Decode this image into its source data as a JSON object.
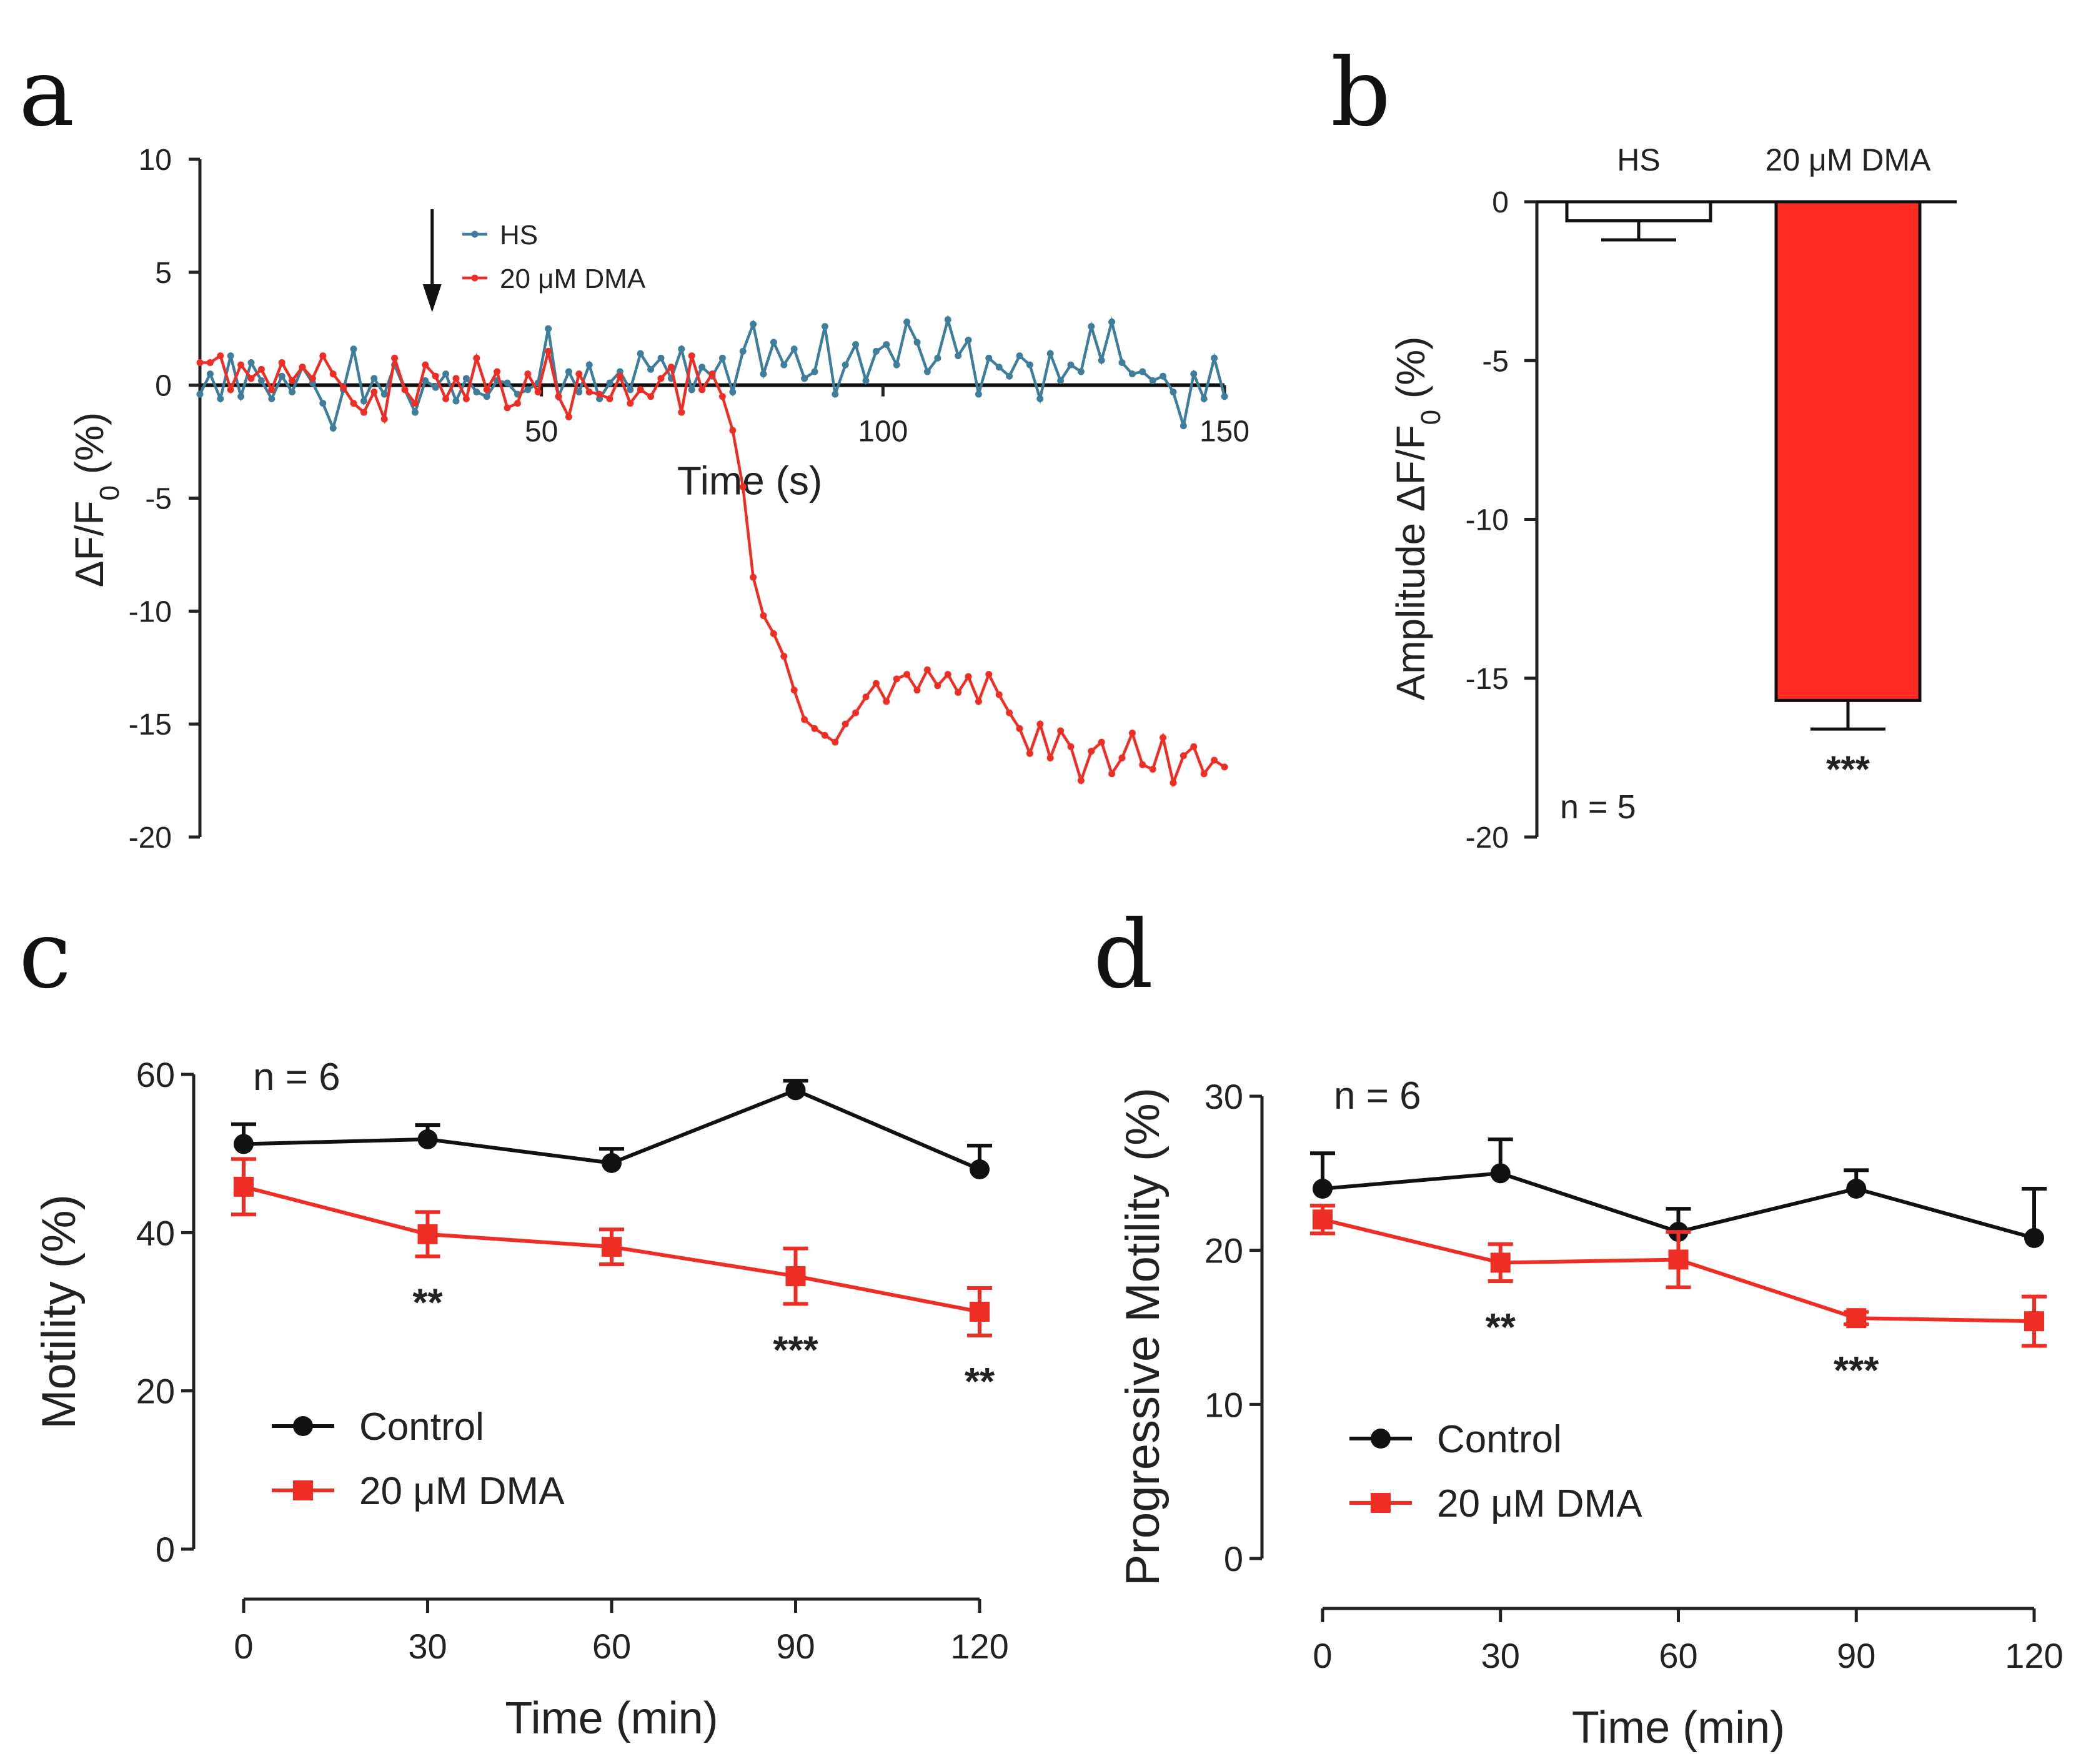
{
  "figure": {
    "panel_letters": [
      "a",
      "b",
      "c",
      "d"
    ]
  },
  "chart_data": [
    {
      "panel": "a",
      "type": "line",
      "xlabel": "Time (s)",
      "ylabel": "ΔF/F0 (%)",
      "ylabel_main": "ΔF/F",
      "ylabel_sub": "0",
      "ylabel_tail": " (%)",
      "xlim": [
        0,
        150
      ],
      "ylim": [
        -20,
        10
      ],
      "xticks": [
        50,
        100,
        150
      ],
      "yticks": [
        10,
        5,
        0,
        -5,
        -10,
        -15,
        -20
      ],
      "legend": [
        "HS",
        "20 μM DMA"
      ],
      "arrow_at_x": 34,
      "series": [
        {
          "name": "HS",
          "color": "#3e7d9b",
          "x": [
            0,
            1.5,
            3,
            4.5,
            6,
            7.5,
            9,
            10.5,
            12,
            13.5,
            15,
            16.5,
            18,
            19.5,
            21,
            22.5,
            24,
            25.5,
            27,
            28.5,
            30,
            31.5,
            33,
            34.5,
            36,
            37.5,
            39,
            40.5,
            42,
            43.5,
            45,
            46.5,
            48,
            49.5,
            51,
            52.5,
            54,
            55.5,
            57,
            58.5,
            60,
            61.5,
            63,
            64.5,
            66,
            67.5,
            69,
            70.5,
            72,
            73.5,
            75,
            76.5,
            78,
            79.5,
            81,
            82.5,
            84,
            85.5,
            87,
            88.5,
            90,
            91.5,
            93,
            94.5,
            96,
            97.5,
            99,
            100.5,
            102,
            103.5,
            105,
            106.5,
            108,
            109.5,
            111,
            112.5,
            114,
            115.5,
            117,
            118.5,
            120,
            121.5,
            123,
            124.5,
            126,
            127.5,
            129,
            130.5,
            132,
            133.5,
            135,
            136.5,
            138,
            139.5,
            141,
            142.5,
            144,
            145.5,
            147,
            148.5,
            150
          ],
          "y": [
            -0.4,
            0.5,
            -0.6,
            1.3,
            -0.5,
            1.0,
            0.2,
            -0.6,
            0.4,
            -0.3,
            0.8,
            0.1,
            -0.8,
            -1.9,
            -0.2,
            1.6,
            -0.7,
            0.3,
            -0.4,
            0.9,
            -0.2,
            -1.2,
            0.2,
            -0.1,
            0.5,
            -0.7,
            0.3,
            -0.3,
            -0.5,
            0.2,
            0.1,
            -0.4,
            -0.2,
            0.1,
            2.5,
            -0.5,
            0.6,
            -0.3,
            0.9,
            -0.6,
            0.1,
            0.6,
            -0.2,
            1.4,
            0.7,
            1.2,
            0.3,
            1.6,
            -0.2,
            0.8,
            0.4,
            1.2,
            -0.3,
            1.5,
            2.7,
            0.5,
            1.9,
            0.9,
            1.6,
            0.3,
            0.6,
            2.6,
            -0.4,
            0.9,
            1.8,
            0.2,
            1.5,
            1.8,
            0.9,
            2.8,
            1.9,
            0.6,
            1.2,
            2.9,
            1.3,
            2.0,
            -0.4,
            1.2,
            0.8,
            0.4,
            1.3,
            0.9,
            -0.6,
            1.4,
            0.2,
            0.9,
            0.6,
            2.6,
            1.1,
            2.8,
            1.0,
            0.5,
            0.6,
            0.2,
            0.4,
            -0.3,
            -1.8,
            0.5,
            -0.6,
            1.2,
            -0.5
          ]
        },
        {
          "name": "20 μM DMA",
          "color": "#ee2e24",
          "x": [
            0,
            1.5,
            3,
            4.5,
            6,
            7.5,
            9,
            10.5,
            12,
            13.5,
            15,
            16.5,
            18,
            19.5,
            21,
            22.5,
            24,
            25.5,
            27,
            28.5,
            30,
            31.5,
            33,
            34.5,
            36,
            37.5,
            39,
            40.5,
            42,
            43.5,
            45,
            46.5,
            48,
            49.5,
            51,
            52.5,
            54,
            55.5,
            57,
            58.5,
            60,
            61.5,
            63,
            64.5,
            66,
            67.5,
            69,
            70.5,
            72,
            73.5,
            75,
            76.5,
            78,
            79.5,
            81,
            82.5,
            84,
            85.5,
            87,
            88.5,
            90,
            91.5,
            93,
            94.5,
            96,
            97.5,
            99,
            100.5,
            102,
            103.5,
            105,
            106.5,
            108,
            109.5,
            111,
            112.5,
            114,
            115.5,
            117,
            118.5,
            120,
            121.5,
            123,
            124.5,
            126,
            127.5,
            129,
            130.5,
            132,
            133.5,
            135,
            136.5,
            138,
            139.5,
            141,
            142.5,
            144,
            145.5,
            147,
            148.5,
            150
          ],
          "y": [
            1.0,
            1.0,
            1.3,
            -0.2,
            0.9,
            0.3,
            0.7,
            -0.2,
            1.0,
            0.2,
            0.8,
            0.3,
            1.3,
            0.5,
            -0.1,
            -0.8,
            -1.2,
            -0.3,
            -1.5,
            1.2,
            -0.2,
            -0.8,
            0.9,
            0.4,
            -0.6,
            0.3,
            -0.6,
            1.2,
            -0.2,
            0.6,
            -1.0,
            -0.8,
            0.5,
            -0.3,
            1.5,
            -0.5,
            -1.4,
            0.5,
            -0.3,
            -0.4,
            -0.6,
            0.4,
            -0.8,
            -0.2,
            -0.5,
            0.3,
            0.8,
            -1.2,
            1.3,
            -0.2,
            0.5,
            -0.5,
            -2.0,
            -4.5,
            -8.5,
            -10.2,
            -11.0,
            -12.0,
            -13.5,
            -14.8,
            -15.2,
            -15.5,
            -15.8,
            -15.0,
            -14.5,
            -13.8,
            -13.2,
            -14.0,
            -13.0,
            -12.8,
            -13.5,
            -12.6,
            -13.3,
            -12.8,
            -13.6,
            -12.9,
            -14.0,
            -12.8,
            -13.7,
            -14.5,
            -15.2,
            -16.3,
            -15.0,
            -16.5,
            -15.3,
            -16.0,
            -17.5,
            -16.2,
            -15.8,
            -17.2,
            -16.5,
            -15.4,
            -16.8,
            -17.0,
            -15.6,
            -17.6,
            -16.4,
            -16.0,
            -17.2,
            -16.6,
            -16.9
          ]
        }
      ]
    },
    {
      "panel": "b",
      "type": "bar",
      "categories": [
        "HS",
        "20 μM DMA"
      ],
      "values": [
        -0.6,
        -15.7
      ],
      "errors": [
        0.6,
        0.9
      ],
      "colors": [
        "#ffffff",
        "#ff2a22"
      ],
      "ylabel": "Amplitude ΔF/F0 (%)",
      "ylabel_main": "Amplitude ΔF/F",
      "ylabel_sub": "0",
      "ylabel_tail": " (%)",
      "ylim": [
        -20,
        0
      ],
      "yticks": [
        0,
        -5,
        -10,
        -15,
        -20
      ],
      "n_label": "n = 5",
      "significance": [
        "",
        "***"
      ]
    },
    {
      "panel": "c",
      "type": "line",
      "xlabel": "Time (min)",
      "ylabel": "Motility (%)",
      "xlim": [
        0,
        120
      ],
      "ylim": [
        0,
        60
      ],
      "xticks": [
        0,
        30,
        60,
        90,
        120
      ],
      "yticks": [
        0,
        20,
        40,
        60
      ],
      "n_label": "n = 6",
      "series": [
        {
          "name": "Control",
          "color": "#111111",
          "marker": "circle",
          "x": [
            0,
            30,
            60,
            90,
            120
          ],
          "y": [
            51.2,
            51.8,
            48.8,
            58.0,
            48.0
          ],
          "err": [
            2.5,
            1.8,
            1.8,
            1.2,
            3.0
          ]
        },
        {
          "name": "20 μM DMA",
          "color": "#ee2e24",
          "marker": "square",
          "x": [
            0,
            30,
            60,
            90,
            120
          ],
          "y": [
            45.8,
            39.8,
            38.2,
            34.5,
            30.0
          ],
          "err": [
            3.5,
            2.8,
            2.2,
            3.5,
            3.0
          ]
        }
      ],
      "significance": [
        {
          "x": 30,
          "label": "**"
        },
        {
          "x": 90,
          "label": "***"
        },
        {
          "x": 120,
          "label": "**"
        }
      ]
    },
    {
      "panel": "d",
      "type": "line",
      "xlabel": "Time (min)",
      "ylabel": "Progressive Motility (%)",
      "xlim": [
        0,
        120
      ],
      "ylim": [
        0,
        30
      ],
      "xticks": [
        0,
        30,
        60,
        90,
        120
      ],
      "yticks": [
        0,
        10,
        20,
        30
      ],
      "n_label": "n = 6",
      "series": [
        {
          "name": "Control",
          "color": "#111111",
          "marker": "circle",
          "x": [
            0,
            30,
            60,
            90,
            120
          ],
          "y": [
            24.0,
            25.0,
            21.2,
            24.0,
            20.8
          ],
          "err": [
            2.3,
            2.2,
            1.5,
            1.2,
            3.2
          ]
        },
        {
          "name": "20 μM DMA",
          "color": "#ee2e24",
          "marker": "square",
          "x": [
            0,
            30,
            60,
            90,
            120
          ],
          "y": [
            22.0,
            19.2,
            19.4,
            15.6,
            15.4
          ],
          "err": [
            0.9,
            1.2,
            1.8,
            0.4,
            1.6
          ]
        }
      ],
      "significance": [
        {
          "x": 30,
          "label": "**"
        },
        {
          "x": 90,
          "label": "***"
        }
      ]
    }
  ]
}
